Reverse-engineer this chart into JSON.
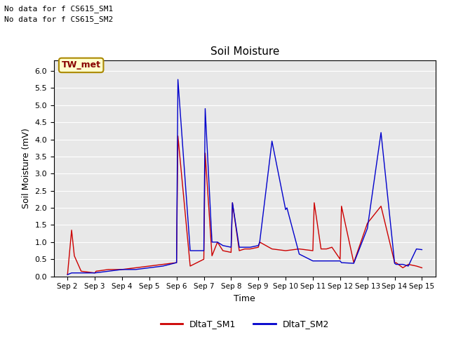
{
  "title": "Soil Moisture",
  "xlabel": "Time",
  "ylabel": "Soil Moisture (mV)",
  "ylim": [
    0.0,
    6.3
  ],
  "yticks": [
    0.0,
    0.5,
    1.0,
    1.5,
    2.0,
    2.5,
    3.0,
    3.5,
    4.0,
    4.5,
    5.0,
    5.5,
    6.0
  ],
  "bg_color": "#e8e8e8",
  "fig_bg_color": "#ffffff",
  "text_annotations": [
    "No data for f CS615_SM1",
    "No data for f CS615_SM2"
  ],
  "legend_box_text": "TW_met",
  "legend_box_facecolor": "#ffffcc",
  "legend_box_edgecolor": "#aa8800",
  "sm1_color": "#cc0000",
  "sm2_color": "#0000cc",
  "x_labels": [
    "Sep 2",
    "Sep 3",
    "Sep 4",
    "Sep 5",
    "Sep 6",
    "Sep 7",
    "Sep 8",
    "Sep 9",
    "Sep 10",
    "Sep 11",
    "Sep 12",
    "Sep 13",
    "Sep 14",
    "Sep 15"
  ],
  "sm1_x": [
    0,
    0.15,
    0.25,
    0.5,
    1.0,
    1.05,
    1.5,
    2.0,
    2.5,
    3.0,
    3.5,
    4.0,
    4.05,
    4.5,
    5.0,
    5.05,
    5.3,
    5.5,
    5.7,
    6.0,
    6.05,
    6.3,
    6.5,
    6.7,
    7.0,
    7.05,
    7.5,
    8.0,
    8.5,
    9.0,
    9.05,
    9.3,
    9.5,
    9.7,
    10.0,
    10.05,
    10.5,
    11.0,
    11.5,
    12.0,
    12.05,
    12.3,
    12.5,
    12.8,
    13.0
  ],
  "sm1_y": [
    0.05,
    1.35,
    0.6,
    0.15,
    0.1,
    0.15,
    0.2,
    0.2,
    0.25,
    0.3,
    0.35,
    0.4,
    4.1,
    0.3,
    0.5,
    3.6,
    0.6,
    1.0,
    0.75,
    0.7,
    2.15,
    0.75,
    0.8,
    0.8,
    0.85,
    1.0,
    0.8,
    0.75,
    0.8,
    0.75,
    2.15,
    0.8,
    0.8,
    0.85,
    0.5,
    2.05,
    0.4,
    1.55,
    2.05,
    0.4,
    0.4,
    0.25,
    0.35,
    0.3,
    0.25
  ],
  "sm2_x": [
    0,
    0.15,
    0.25,
    0.5,
    1.0,
    1.5,
    2.0,
    2.5,
    3.0,
    3.5,
    4.0,
    4.05,
    4.5,
    5.0,
    5.05,
    5.3,
    5.5,
    5.7,
    6.0,
    6.05,
    6.3,
    6.5,
    6.7,
    7.0,
    7.05,
    7.5,
    8.0,
    8.05,
    8.5,
    9.0,
    9.5,
    10.0,
    10.05,
    10.5,
    11.0,
    11.5,
    12.0,
    12.05,
    12.3,
    12.5,
    12.8,
    13.0
  ],
  "sm2_y": [
    0.05,
    0.1,
    0.1,
    0.1,
    0.1,
    0.15,
    0.2,
    0.2,
    0.25,
    0.3,
    0.4,
    5.75,
    0.75,
    0.75,
    4.9,
    1.0,
    1.0,
    0.9,
    0.85,
    2.15,
    0.85,
    0.85,
    0.85,
    0.9,
    1.0,
    3.95,
    1.95,
    2.0,
    0.65,
    0.45,
    0.45,
    0.45,
    0.4,
    0.38,
    1.4,
    4.2,
    0.38,
    0.35,
    0.35,
    0.3,
    0.8,
    0.78
  ]
}
